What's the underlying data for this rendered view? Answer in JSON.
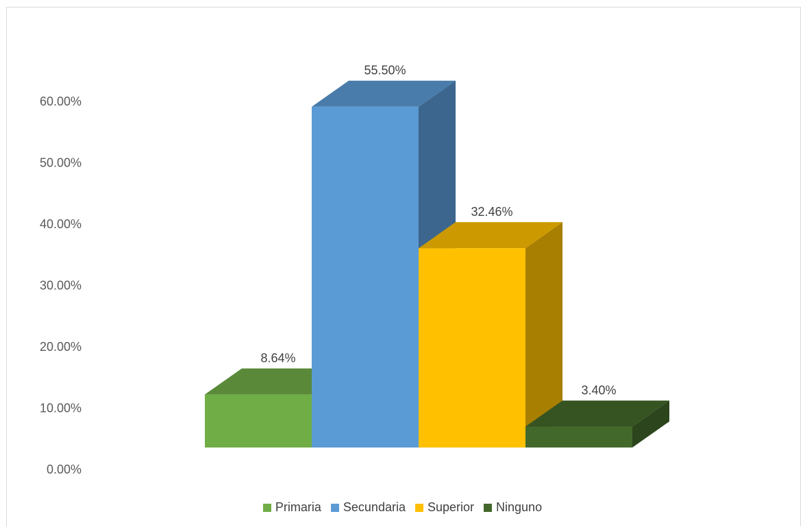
{
  "chart_data": {
    "type": "bar",
    "categories": [
      "Primaria",
      "Secundaria",
      "Superior",
      "Ninguno"
    ],
    "values": [
      8.64,
      55.5,
      32.46,
      3.4
    ],
    "data_labels": [
      "8.64%",
      "55.50%",
      "32.46%",
      "3.40%"
    ],
    "y_ticks": [
      "0.00%",
      "10.00%",
      "20.00%",
      "30.00%",
      "40.00%",
      "50.00%",
      "60.00%"
    ],
    "ylim": [
      0,
      60
    ],
    "legend_position": "bottom",
    "three_d": true,
    "colors": {
      "Primaria": "#70ad47",
      "Secundaria": "#5b9bd5",
      "Superior": "#ffc000",
      "Ninguno": "#43682b"
    }
  }
}
